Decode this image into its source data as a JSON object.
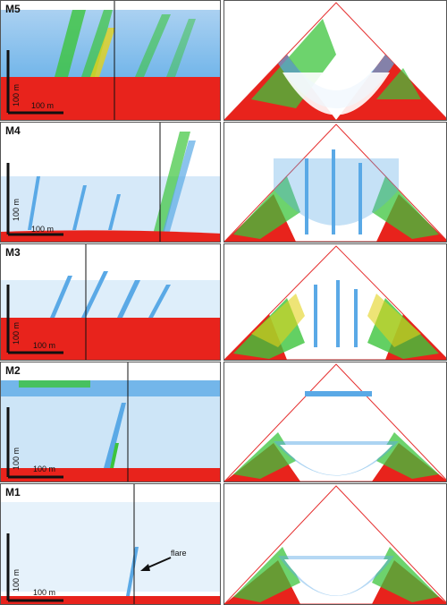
{
  "panels": [
    {
      "label": "M5",
      "scale_vertical": "100 m",
      "scale_horizontal": "100 m"
    },
    {
      "label": "M4",
      "scale_vertical": "100 m",
      "scale_horizontal": "100 m"
    },
    {
      "label": "M3",
      "scale_vertical": "100 m",
      "scale_horizontal": "100 m"
    },
    {
      "label": "M2",
      "scale_vertical": "100 m",
      "scale_horizontal": "100 m"
    },
    {
      "label": "M1",
      "scale_vertical": "100 m",
      "scale_horizontal": "100 m",
      "annotation": "flare"
    }
  ],
  "colors": {
    "seafloor": "#e8231c",
    "water_column_noise": "#5aa9e6",
    "strong_return": "#3cc43c",
    "peak_return": "#e3d21a",
    "fan_edge": "#e53030"
  }
}
